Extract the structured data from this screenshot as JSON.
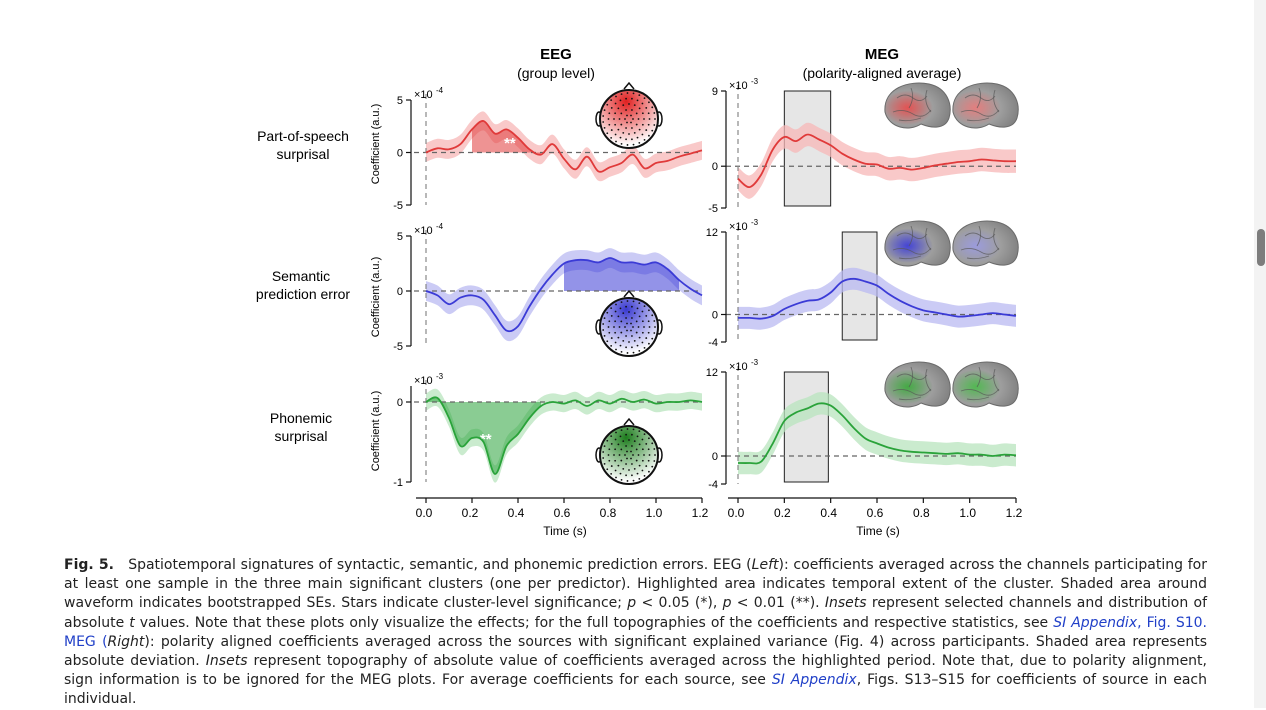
{
  "figure": {
    "columns": [
      {
        "title": "EEG",
        "subtitle": "(group level)"
      },
      {
        "title": "MEG",
        "subtitle": "(polarity-aligned average)"
      }
    ],
    "rows": [
      {
        "label_lines": [
          "Part-of-speech",
          "surprisal"
        ],
        "color": "#e03a3a",
        "light": "#f7b7b7",
        "stars": "**",
        "eeg": {
          "ylabel": "Coefficient (a.u.)",
          "exp": "×10",
          "exp_pow": "-4",
          "ticks": [
            "5",
            "0",
            "-5"
          ]
        },
        "meg": {
          "exp": "×10",
          "exp_pow": "-3",
          "ticks": [
            "9",
            "0",
            "-5"
          ]
        }
      },
      {
        "label_lines": [
          "Semantic",
          "prediction error"
        ],
        "color": "#3b3bd6",
        "light": "#b9b9f2",
        "stars": "*",
        "eeg": {
          "ylabel": "Coefficient (a.u.)",
          "exp": "×10",
          "exp_pow": "-4",
          "ticks": [
            "5",
            "0",
            "-5"
          ]
        },
        "meg": {
          "exp": "×10",
          "exp_pow": "-3",
          "ticks": [
            "12",
            "0",
            "-4"
          ]
        }
      },
      {
        "label_lines": [
          "Phonemic",
          "surprisal"
        ],
        "color": "#2aa33a",
        "light": "#b8e4bd",
        "stars": "**",
        "eeg": {
          "ylabel": "Coefficient (a.u.)",
          "exp": "×10",
          "exp_pow": "-3",
          "ticks": [
            "0",
            "-1"
          ]
        },
        "meg": {
          "exp": "×10",
          "exp_pow": "-3",
          "ticks": [
            "12",
            "0",
            "-4"
          ]
        }
      }
    ],
    "x_ticks": [
      "0.0",
      "0.2",
      "0.4",
      "0.6",
      "0.8",
      "1.0",
      "1.2"
    ],
    "xlabel": "Time (s)"
  },
  "caption": {
    "fig_label": "Fig. 5.",
    "p1": "Spatiotemporal signatures of syntactic, semantic, and phonemic prediction errors. EEG (",
    "left": "Left",
    "p2": "): coefficients averaged across the channels participating for at least one sample in the three main significant clusters (one per predictor). Highlighted area indicates temporal extent of the cluster. Shaded area around waveform indicates bootstrapped SEs. Stars indicate cluster-level significance; ",
    "p_expr1": "p",
    "p3": " < 0.05 (*), ",
    "p_expr2": "p",
    "p4": " < 0.01 (**). ",
    "insets1": "Insets",
    "p5": " represent selected channels and distribution of absolute ",
    "t": "t",
    "p6": " values. Note that these plots only visualize the effects; for the full topographies of the coefficients and respective statistics, see ",
    "si1": "SI Appendix",
    "p7": ", Fig. S10. MEG (",
    "right": "Right",
    "p8": "): polarity aligned coefficients averaged across the sources with significant explained variance (Fig. 4) across participants. Shaded area represents absolute deviation. ",
    "insets2": "Insets",
    "p9": " represent topography of absolute value of coefficients averaged across the highlighted period. Note that, due to polarity alignment, sign information is to be ignored for the MEG plots. For average coefficients for each source, see ",
    "si2": "SI Appendix",
    "p10": ", Figs. S13–S15 for coefficients of source in each individual."
  },
  "chart_data": [
    {
      "type": "line",
      "panel": "EEG Part-of-speech surprisal",
      "unit_scale": "×10^-4",
      "x": [
        0.0,
        0.05,
        0.1,
        0.15,
        0.2,
        0.25,
        0.3,
        0.35,
        0.4,
        0.45,
        0.5,
        0.55,
        0.6,
        0.65,
        0.7,
        0.75,
        0.8,
        0.85,
        0.9,
        0.95,
        1.0,
        1.05,
        1.1,
        1.15,
        1.2
      ],
      "values": [
        0.0,
        0.4,
        0.3,
        0.8,
        2.2,
        3.0,
        1.8,
        2.2,
        1.4,
        0.3,
        -0.2,
        0.8,
        -0.6,
        -1.6,
        -0.4,
        -1.8,
        -1.4,
        -1.0,
        -0.2,
        -1.5,
        -1.0,
        -0.8,
        -0.4,
        -0.1,
        0.2
      ],
      "cluster": [
        0.19,
        0.54
      ],
      "ylim": [
        -5,
        5
      ]
    },
    {
      "type": "line",
      "panel": "EEG Semantic prediction error",
      "unit_scale": "×10^-4",
      "x": [
        0.0,
        0.05,
        0.1,
        0.15,
        0.2,
        0.25,
        0.3,
        0.35,
        0.4,
        0.45,
        0.5,
        0.55,
        0.6,
        0.65,
        0.7,
        0.75,
        0.8,
        0.85,
        0.9,
        0.95,
        1.0,
        1.05,
        1.1,
        1.15,
        1.2
      ],
      "values": [
        0.0,
        -0.4,
        -1.2,
        -0.6,
        -0.4,
        -0.8,
        -2.2,
        -3.6,
        -3.2,
        -1.4,
        0.2,
        1.5,
        2.5,
        2.8,
        2.8,
        2.6,
        3.0,
        2.6,
        2.6,
        2.4,
        2.6,
        2.0,
        1.0,
        0.2,
        -0.4
      ],
      "cluster": [
        0.58,
        1.12
      ],
      "ylim": [
        -5,
        5
      ]
    },
    {
      "type": "line",
      "panel": "EEG Phonemic surprisal",
      "unit_scale": "×10^-3",
      "x": [
        0.0,
        0.05,
        0.1,
        0.15,
        0.2,
        0.25,
        0.3,
        0.35,
        0.4,
        0.45,
        0.5,
        0.55,
        0.6,
        0.65,
        0.7,
        0.75,
        0.8,
        0.85,
        0.9,
        0.95,
        1.0,
        1.05,
        1.1,
        1.15,
        1.2
      ],
      "values": [
        0.0,
        0.05,
        -0.2,
        -0.55,
        -0.45,
        -0.5,
        -0.9,
        -0.55,
        -0.4,
        -0.2,
        -0.05,
        0.0,
        -0.02,
        0.02,
        -0.05,
        0.02,
        -0.02,
        0.04,
        0.0,
        0.03,
        -0.02,
        0.0,
        0.0,
        0.02,
        0.0
      ],
      "cluster": [
        0.0,
        0.52
      ],
      "ylim": [
        -1,
        0.2
      ]
    },
    {
      "type": "line",
      "panel": "MEG Part-of-speech surprisal",
      "unit_scale": "×10^-3",
      "x": [
        0.0,
        0.05,
        0.1,
        0.15,
        0.2,
        0.25,
        0.3,
        0.35,
        0.4,
        0.45,
        0.5,
        0.55,
        0.6,
        0.65,
        0.7,
        0.75,
        0.8,
        0.85,
        0.9,
        0.95,
        1.0,
        1.05,
        1.1,
        1.15,
        1.2
      ],
      "values": [
        -1.5,
        -2.5,
        -1.0,
        2.0,
        3.5,
        3.0,
        3.8,
        3.2,
        2.5,
        1.5,
        0.8,
        0.3,
        0.2,
        -0.3,
        -0.2,
        -0.4,
        -0.2,
        0.1,
        0.3,
        0.5,
        0.6,
        0.8,
        0.7,
        0.6,
        0.6
      ],
      "highlight": [
        0.2,
        0.4
      ],
      "ylim": [
        -5,
        9
      ]
    },
    {
      "type": "line",
      "panel": "MEG Semantic prediction error",
      "unit_scale": "×10^-3",
      "x": [
        0.0,
        0.05,
        0.1,
        0.15,
        0.2,
        0.25,
        0.3,
        0.35,
        0.4,
        0.45,
        0.5,
        0.55,
        0.6,
        0.65,
        0.7,
        0.75,
        0.8,
        0.85,
        0.9,
        0.95,
        1.0,
        1.05,
        1.1,
        1.15,
        1.2
      ],
      "values": [
        -0.5,
        -0.5,
        -0.6,
        -0.2,
        0.8,
        1.5,
        2.0,
        2.2,
        3.2,
        4.8,
        5.2,
        4.8,
        4.2,
        3.0,
        2.0,
        1.2,
        0.6,
        0.3,
        0.0,
        -0.3,
        -0.2,
        0.0,
        0.2,
        0.0,
        -0.2
      ],
      "highlight": [
        0.45,
        0.6
      ],
      "ylim": [
        -4,
        12
      ]
    },
    {
      "type": "line",
      "panel": "MEG Phonemic surprisal",
      "unit_scale": "×10^-3",
      "x": [
        0.0,
        0.05,
        0.1,
        0.15,
        0.2,
        0.25,
        0.3,
        0.35,
        0.4,
        0.45,
        0.5,
        0.55,
        0.6,
        0.65,
        0.7,
        0.75,
        0.8,
        0.85,
        0.9,
        0.95,
        1.0,
        1.05,
        1.1,
        1.15,
        1.2
      ],
      "values": [
        -1.0,
        -1.0,
        -0.8,
        1.8,
        5.0,
        6.2,
        6.8,
        7.5,
        7.2,
        5.8,
        4.0,
        2.5,
        1.8,
        1.2,
        0.8,
        0.6,
        0.5,
        0.4,
        0.3,
        0.4,
        0.2,
        0.2,
        0.0,
        0.2,
        0.1
      ],
      "highlight": [
        0.2,
        0.39
      ],
      "ylim": [
        -4,
        12
      ]
    }
  ]
}
